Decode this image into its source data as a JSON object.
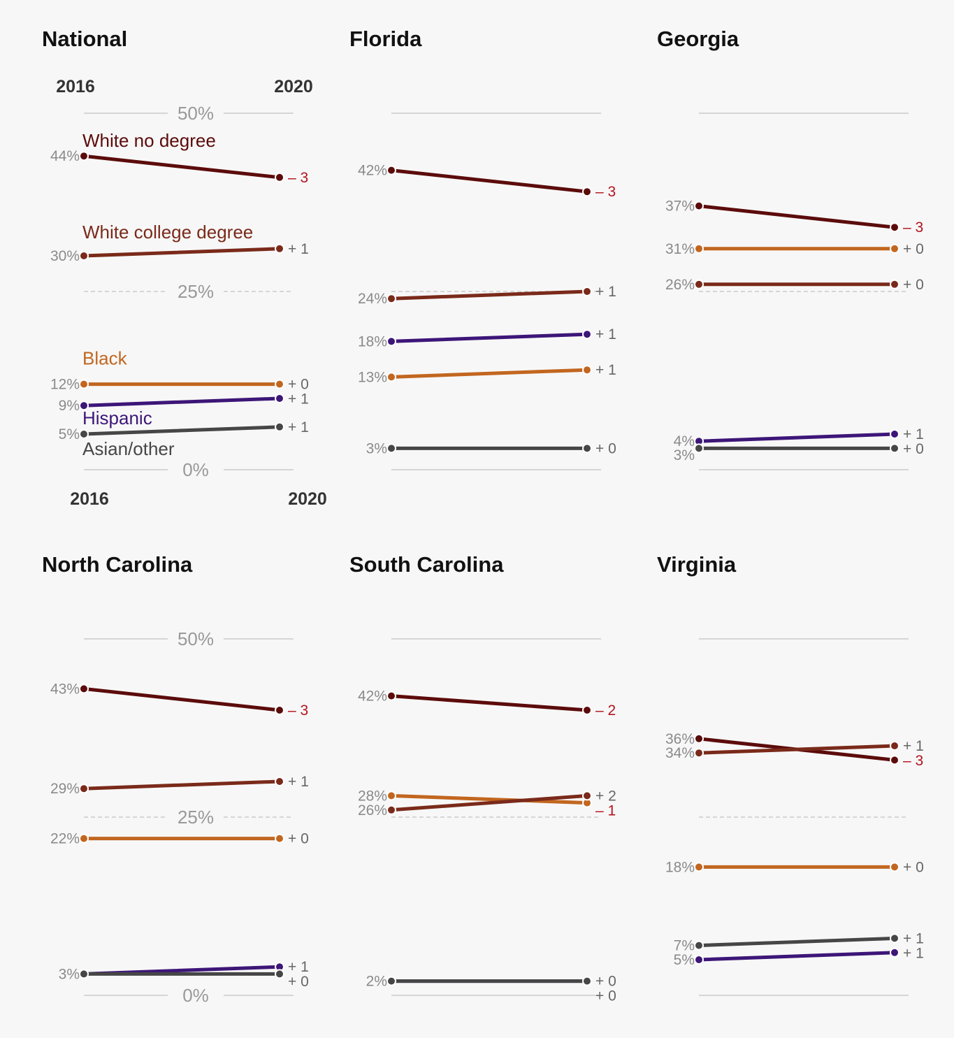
{
  "colors": {
    "white_no_degree": "#5c0b0b",
    "white_college_degree": "#7a2a1a",
    "black": "#c2661f",
    "hispanic": "#3d1678",
    "asian_other": "#464646",
    "negative_change": "#b3121d",
    "gridline": "#cccccc",
    "axis_text": "#999999"
  },
  "chart_data": {
    "type": "line",
    "years": [
      "2016",
      "2020"
    ],
    "gridlines": [
      "50%",
      "25%",
      "0%"
    ],
    "ylim": [
      0,
      50
    ],
    "series_names": [
      "White no degree",
      "White college degree",
      "Black",
      "Hispanic",
      "Asian/other"
    ],
    "panels": [
      {
        "title": "National",
        "series": [
          {
            "key": "white_no_degree",
            "start": 44,
            "end": 41,
            "start_label": "44%",
            "change": "– 3",
            "negative": true
          },
          {
            "key": "white_college_degree",
            "start": 30,
            "end": 31,
            "start_label": "30%",
            "change": "+ 1"
          },
          {
            "key": "black",
            "start": 12,
            "end": 12,
            "start_label": "12%",
            "change": "+ 0"
          },
          {
            "key": "hispanic",
            "start": 9,
            "end": 10,
            "start_label": "9%",
            "change": "+ 1"
          },
          {
            "key": "asian_other",
            "start": 5,
            "end": 6,
            "start_label": "5%",
            "change": "+ 1"
          }
        ]
      },
      {
        "title": "Florida",
        "series": [
          {
            "key": "white_no_degree",
            "start": 42,
            "end": 39,
            "start_label": "42%",
            "change": "– 3",
            "negative": true
          },
          {
            "key": "white_college_degree",
            "start": 24,
            "end": 25,
            "start_label": "24%",
            "change": "+ 1"
          },
          {
            "key": "hispanic",
            "start": 18,
            "end": 19,
            "start_label": "18%",
            "change": "+ 1"
          },
          {
            "key": "black",
            "start": 13,
            "end": 14,
            "start_label": "13%",
            "change": "+ 1"
          },
          {
            "key": "asian_other",
            "start": 3,
            "end": 3,
            "start_label": "3%",
            "change": "+ 0"
          }
        ]
      },
      {
        "title": "Georgia",
        "series": [
          {
            "key": "white_no_degree",
            "start": 37,
            "end": 34,
            "start_label": "37%",
            "change": "– 3",
            "negative": true
          },
          {
            "key": "black",
            "start": 31,
            "end": 31,
            "start_label": "31%",
            "change": "+ 0"
          },
          {
            "key": "white_college_degree",
            "start": 26,
            "end": 26,
            "start_label": "26%",
            "change": "+ 0"
          },
          {
            "key": "hispanic",
            "start": 4,
            "end": 5,
            "start_label": "4%",
            "change": "+ 1"
          },
          {
            "key": "asian_other",
            "start": 3,
            "end": 3,
            "start_label": "3%",
            "change": "+ 0"
          }
        ]
      },
      {
        "title": "North Carolina",
        "series": [
          {
            "key": "white_no_degree",
            "start": 43,
            "end": 40,
            "start_label": "43%",
            "change": "– 3",
            "negative": true
          },
          {
            "key": "white_college_degree",
            "start": 29,
            "end": 30,
            "start_label": "29%",
            "change": "+ 1"
          },
          {
            "key": "black",
            "start": 22,
            "end": 22,
            "start_label": "22%",
            "change": "+ 0"
          },
          {
            "key": "hispanic",
            "start": 3,
            "end": 4,
            "start_label": "3%",
            "change": "+ 1"
          },
          {
            "key": "asian_other",
            "start": 3,
            "end": 3,
            "start_label": "",
            "change": "+ 0"
          }
        ]
      },
      {
        "title": "South Carolina",
        "series": [
          {
            "key": "white_no_degree",
            "start": 42,
            "end": 40,
            "start_label": "42%",
            "change": "– 2",
            "negative": true
          },
          {
            "key": "black",
            "start": 28,
            "end": 27,
            "start_label": "28%",
            "change": "– 1",
            "negative": true
          },
          {
            "key": "white_college_degree",
            "start": 26,
            "end": 28,
            "start_label": "26%",
            "change": "+ 2"
          },
          {
            "key": "hispanic",
            "start": 2,
            "end": 2,
            "start_label": "",
            "change": "+ 0"
          },
          {
            "key": "asian_other",
            "start": 2,
            "end": 2,
            "start_label": "2%",
            "change": "+ 0"
          }
        ]
      },
      {
        "title": "Virginia",
        "series": [
          {
            "key": "white_no_degree",
            "start": 36,
            "end": 33,
            "start_label": "36%",
            "change": "– 3",
            "negative": true
          },
          {
            "key": "white_college_degree",
            "start": 34,
            "end": 35,
            "start_label": "34%",
            "change": "+ 1"
          },
          {
            "key": "black",
            "start": 18,
            "end": 18,
            "start_label": "18%",
            "change": "+ 0"
          },
          {
            "key": "asian_other",
            "start": 7,
            "end": 8,
            "start_label": "7%",
            "change": "+ 1"
          },
          {
            "key": "hispanic",
            "start": 5,
            "end": 6,
            "start_label": "5%",
            "change": "+ 1"
          }
        ]
      }
    ]
  }
}
